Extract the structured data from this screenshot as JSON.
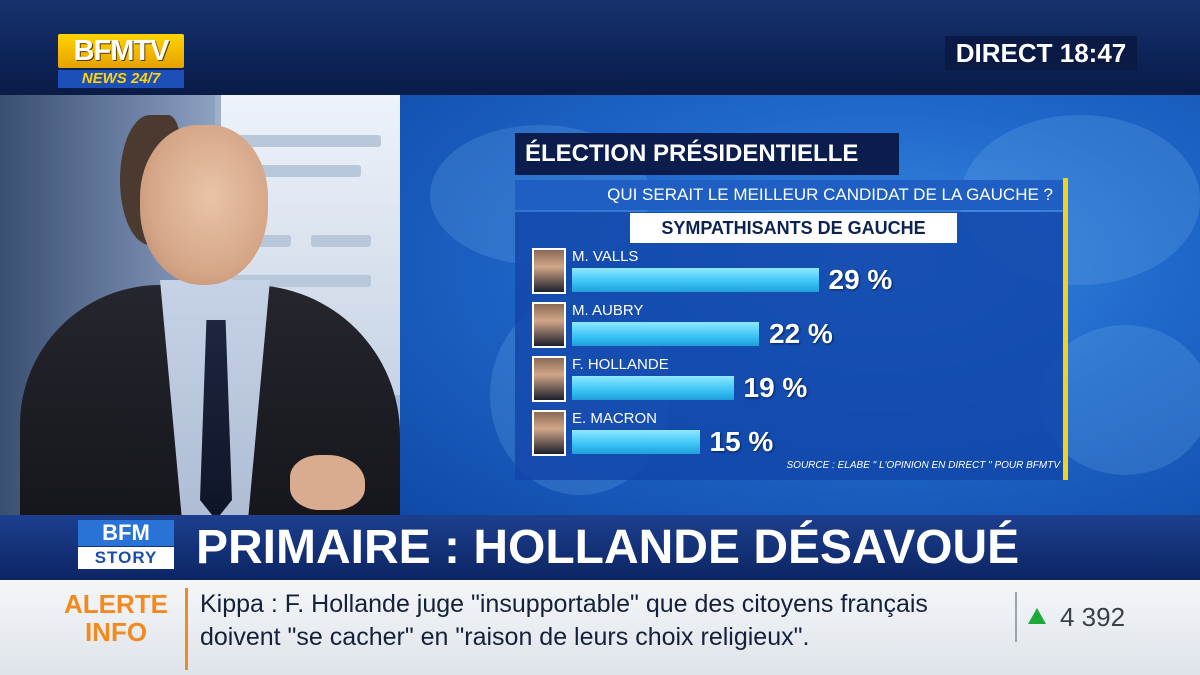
{
  "channel": {
    "logo_main": "BFMTV",
    "logo_sub": "NEWS 24/7",
    "live_label": "DIRECT 18:47"
  },
  "graphic": {
    "title": "ÉLECTION PRÉSIDENTIELLE",
    "question": "QUI SERAIT LE MEILLEUR CANDIDAT DE LA GAUCHE ?",
    "subtitle": "SYMPATHISANTS DE GAUCHE",
    "source": "SOURCE : ELABE \" L'OPINION EN DIRECT \" POUR BFMTV"
  },
  "chart_data": {
    "type": "bar",
    "title": "ÉLECTION PRÉSIDENTIELLE",
    "subtitle": "QUI SERAIT LE MEILLEUR CANDIDAT DE LA GAUCHE ?",
    "group_label": "SYMPATHISANTS DE GAUCHE",
    "categories": [
      "M. VALLS",
      "M. AUBRY",
      "F. HOLLANDE",
      "E. MACRON"
    ],
    "values": [
      29,
      22,
      19,
      15
    ],
    "value_labels": [
      "29 %",
      "22 %",
      "19 %",
      "15 %"
    ],
    "unit": "%",
    "orientation": "horizontal",
    "bar_color": "#3bc3f5",
    "grid": false
  },
  "story": {
    "logo_main": "BFM",
    "logo_sub": "STORY",
    "headline": "PRIMAIRE : HOLLANDE DÉSAVOUÉ"
  },
  "alert": {
    "label_line1": "ALERTE",
    "label_line2": "INFO",
    "text_line1": "Kippa : F. Hollande juge \"insupportable\" que des citoyens français",
    "text_line2": "doivent \"se cacher\" en \"raison de leurs choix religieux\".",
    "ticker_icon": "up-arrow-icon",
    "ticker_value": "4 392",
    "ticker_color": "#1ea83a",
    "accent_color": "#f28a1e"
  }
}
